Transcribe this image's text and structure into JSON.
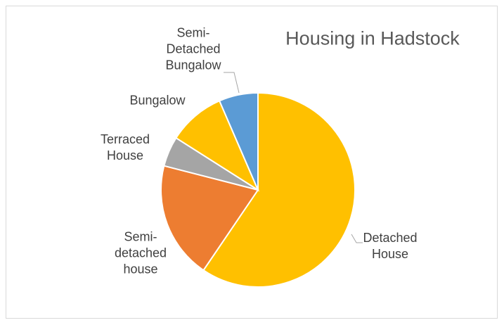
{
  "chart_data": {
    "type": "pie",
    "title": "Housing in Hadstock",
    "categories": [
      "Detached House",
      "Semi-detached house",
      "Terraced House",
      "Bungalow",
      "Semi-Detached Bungalow"
    ],
    "values": [
      59.5,
      19.5,
      5,
      9.5,
      6.5
    ],
    "colors": [
      "#FFC000",
      "#ED7D31",
      "#A5A5A5",
      "#FFC000",
      "#5B9BD5"
    ]
  }
}
